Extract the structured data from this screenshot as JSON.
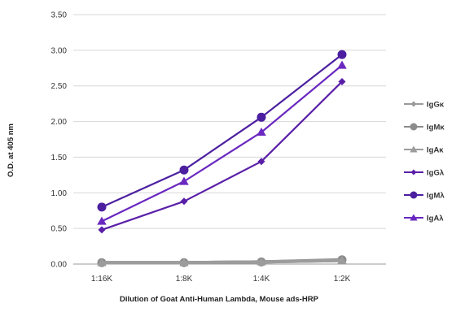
{
  "chart_data": {
    "type": "line",
    "categories": [
      "1:16K",
      "1:8K",
      "1:4K",
      "1:2K"
    ],
    "xlabel": "Dilution of Goat Anti-Human Lambda, Mouse ads-HRP",
    "ylabel": "O.D. at 405 nm",
    "ylim": [
      0,
      3.5
    ],
    "ytick_step": 0.5,
    "y_tick_labels": [
      "0.00",
      "0.50",
      "1.00",
      "1.50",
      "2.00",
      "2.50",
      "3.00",
      "3.50"
    ],
    "grid": true,
    "legend_position": "right",
    "series": [
      {
        "name": "IgGκ",
        "values": [
          0.02,
          0.02,
          0.03,
          0.05
        ],
        "color": "#9a9a9a",
        "marker": "diamond"
      },
      {
        "name": "IgMκ",
        "values": [
          0.02,
          0.02,
          0.03,
          0.06
        ],
        "color": "#8c8c8c",
        "marker": "circle"
      },
      {
        "name": "IgAκ",
        "values": [
          0.02,
          0.02,
          0.03,
          0.05
        ],
        "color": "#9c9c9c",
        "marker": "triangle"
      },
      {
        "name": "IgGλ",
        "values": [
          0.48,
          0.88,
          1.44,
          2.56
        ],
        "color": "#5a1fa8",
        "marker": "diamond"
      },
      {
        "name": "IgMλ",
        "values": [
          0.8,
          1.32,
          2.06,
          2.94
        ],
        "color": "#4b1fa0",
        "marker": "circle"
      },
      {
        "name": "IgAλ",
        "values": [
          0.6,
          1.16,
          1.85,
          2.79
        ],
        "color": "#6a28c0",
        "marker": "triangle"
      }
    ]
  }
}
